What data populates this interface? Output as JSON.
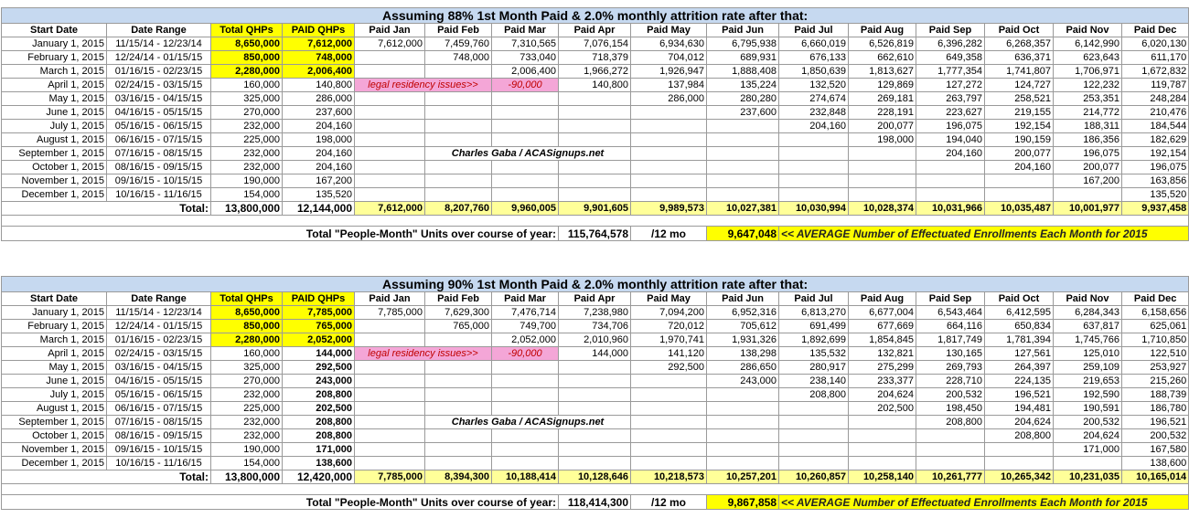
{
  "tables": [
    {
      "title": "Assuming 88% 1st Month Paid & 2.0% monthly attrition rate after that:",
      "headers": [
        "Start Date",
        "Date Range",
        "Total QHPs",
        "PAID QHPs",
        "Paid Jan",
        "Paid Feb",
        "Paid Mar",
        "Paid Apr",
        "Paid May",
        "Paid Jun",
        "Paid Jul",
        "Paid Aug",
        "Paid Sep",
        "Paid Oct",
        "Paid Nov",
        "Paid Dec"
      ],
      "rows": [
        [
          "January 1, 2015",
          "11/15/14 - 12/23/14",
          "8,650,000",
          "7,612,000",
          "7,612,000",
          "7,459,760",
          "7,310,565",
          "7,076,154",
          "6,934,630",
          "6,795,938",
          "6,660,019",
          "6,526,819",
          "6,396,282",
          "6,268,357",
          "6,142,990",
          "6,020,130"
        ],
        [
          "February 1, 2015",
          "12/24/14 - 01/15/15",
          "850,000",
          "748,000",
          null,
          "748,000",
          "733,040",
          "718,379",
          "704,012",
          "689,931",
          "676,133",
          "662,610",
          "649,358",
          "636,371",
          "623,643",
          "611,170"
        ],
        [
          "March 1, 2015",
          "01/16/15 - 02/23/15",
          "2,280,000",
          "2,006,400",
          null,
          null,
          "2,006,400",
          "1,966,272",
          "1,926,947",
          "1,888,408",
          "1,850,639",
          "1,813,627",
          "1,777,354",
          "1,741,807",
          "1,706,971",
          "1,672,832"
        ],
        [
          "April 1, 2015",
          "02/24/15 - 03/15/15",
          "160,000",
          "140,800",
          "legal residency issues>>",
          null,
          "-90,000",
          "140,800",
          "137,984",
          "135,224",
          "132,520",
          "129,869",
          "127,272",
          "124,727",
          "122,232",
          "119,787"
        ],
        [
          "May 1, 2015",
          "03/16/15 - 04/15/15",
          "325,000",
          "286,000",
          null,
          null,
          null,
          null,
          "286,000",
          "280,280",
          "274,674",
          "269,181",
          "263,797",
          "258,521",
          "253,351",
          "248,284"
        ],
        [
          "June 1, 2015",
          "04/16/15 - 05/15/15",
          "270,000",
          "237,600",
          null,
          null,
          null,
          null,
          null,
          "237,600",
          "232,848",
          "228,191",
          "223,627",
          "219,155",
          "214,772",
          "210,476"
        ],
        [
          "July 1, 2015",
          "05/16/15 - 06/15/15",
          "232,000",
          "204,160",
          null,
          null,
          null,
          null,
          null,
          null,
          "204,160",
          "200,077",
          "196,075",
          "192,154",
          "188,311",
          "184,544"
        ],
        [
          "August 1, 2015",
          "06/16/15 - 07/15/15",
          "225,000",
          "198,000",
          null,
          null,
          null,
          null,
          null,
          null,
          null,
          "198,000",
          "194,040",
          "190,159",
          "186,356",
          "182,629"
        ],
        [
          "September 1, 2015",
          "07/16/15 - 08/15/15",
          "232,000",
          "204,160",
          null,
          null,
          null,
          null,
          null,
          null,
          null,
          null,
          "204,160",
          "200,077",
          "196,075",
          "192,154"
        ],
        [
          "October 1, 2015",
          "08/16/15 - 09/15/15",
          "232,000",
          "204,160",
          null,
          null,
          null,
          null,
          null,
          null,
          null,
          null,
          null,
          "204,160",
          "200,077",
          "196,075"
        ],
        [
          "November 1, 2015",
          "09/16/15 - 10/15/15",
          "190,000",
          "167,200",
          null,
          null,
          null,
          null,
          null,
          null,
          null,
          null,
          null,
          null,
          "167,200",
          "163,856"
        ],
        [
          "December 1, 2015",
          "10/16/15 - 11/16/15",
          "154,000",
          "135,520",
          null,
          null,
          null,
          null,
          null,
          null,
          null,
          null,
          null,
          null,
          null,
          "135,520"
        ]
      ],
      "credit": "Charles Gaba / ACASignups.net",
      "total": {
        "label": "Total:",
        "cells": [
          "13,800,000",
          "12,144,000",
          "7,612,000",
          "8,207,760",
          "9,960,005",
          "9,901,605",
          "9,989,573",
          "10,027,381",
          "10,030,994",
          "10,028,374",
          "10,031,966",
          "10,035,487",
          "10,001,977",
          "9,937,458"
        ]
      },
      "summary": {
        "label": "Total \"People-Month\" Units over course of year:",
        "total": "115,764,578",
        "divisor": "/12 mo",
        "average": "9,647,048",
        "note": "<< AVERAGE Number of Effectuated Enrollments Each Month for 2015"
      }
    },
    {
      "title": "Assuming 90% 1st Month Paid & 2.0% monthly attrition rate after that:",
      "headers": [
        "Start Date",
        "Date Range",
        "Total QHPs",
        "PAID QHPs",
        "Paid Jan",
        "Paid Feb",
        "Paid Mar",
        "Paid Apr",
        "Paid May",
        "Paid Jun",
        "Paid Jul",
        "Paid Aug",
        "Paid Sep",
        "Paid Oct",
        "Paid Nov",
        "Paid Dec"
      ],
      "rows": [
        [
          "January 1, 2015",
          "11/15/14 - 12/23/14",
          "8,650,000",
          "7,785,000",
          "7,785,000",
          "7,629,300",
          "7,476,714",
          "7,238,980",
          "7,094,200",
          "6,952,316",
          "6,813,270",
          "6,677,004",
          "6,543,464",
          "6,412,595",
          "6,284,343",
          "6,158,656"
        ],
        [
          "February 1, 2015",
          "12/24/14 - 01/15/15",
          "850,000",
          "765,000",
          null,
          "765,000",
          "749,700",
          "734,706",
          "720,012",
          "705,612",
          "691,499",
          "677,669",
          "664,116",
          "650,834",
          "637,817",
          "625,061"
        ],
        [
          "March 1, 2015",
          "01/16/15 - 02/23/15",
          "2,280,000",
          "2,052,000",
          null,
          null,
          "2,052,000",
          "2,010,960",
          "1,970,741",
          "1,931,326",
          "1,892,699",
          "1,854,845",
          "1,817,749",
          "1,781,394",
          "1,745,766",
          "1,710,850"
        ],
        [
          "April 1, 2015",
          "02/24/15 - 03/15/15",
          "160,000",
          "144,000",
          "legal residency issues>>",
          null,
          "-90,000",
          "144,000",
          "141,120",
          "138,298",
          "135,532",
          "132,821",
          "130,165",
          "127,561",
          "125,010",
          "122,510"
        ],
        [
          "May 1, 2015",
          "03/16/15 - 04/15/15",
          "325,000",
          "292,500",
          null,
          null,
          null,
          null,
          "292,500",
          "286,650",
          "280,917",
          "275,299",
          "269,793",
          "264,397",
          "259,109",
          "253,927"
        ],
        [
          "June 1, 2015",
          "04/16/15 - 05/15/15",
          "270,000",
          "243,000",
          null,
          null,
          null,
          null,
          null,
          "243,000",
          "238,140",
          "233,377",
          "228,710",
          "224,135",
          "219,653",
          "215,260"
        ],
        [
          "July 1, 2015",
          "05/16/15 - 06/15/15",
          "232,000",
          "208,800",
          null,
          null,
          null,
          null,
          null,
          null,
          "208,800",
          "204,624",
          "200,532",
          "196,521",
          "192,590",
          "188,739"
        ],
        [
          "August 1, 2015",
          "06/16/15 - 07/15/15",
          "225,000",
          "202,500",
          null,
          null,
          null,
          null,
          null,
          null,
          null,
          "202,500",
          "198,450",
          "194,481",
          "190,591",
          "186,780"
        ],
        [
          "September 1, 2015",
          "07/16/15 - 08/15/15",
          "232,000",
          "208,800",
          null,
          null,
          null,
          null,
          null,
          null,
          null,
          null,
          "208,800",
          "204,624",
          "200,532",
          "196,521"
        ],
        [
          "October 1, 2015",
          "08/16/15 - 09/15/15",
          "232,000",
          "208,800",
          null,
          null,
          null,
          null,
          null,
          null,
          null,
          null,
          null,
          "208,800",
          "204,624",
          "200,532"
        ],
        [
          "November 1, 2015",
          "09/16/15 - 10/15/15",
          "190,000",
          "171,000",
          null,
          null,
          null,
          null,
          null,
          null,
          null,
          null,
          null,
          null,
          "171,000",
          "167,580"
        ],
        [
          "December 1, 2015",
          "10/16/15 - 11/16/15",
          "154,000",
          "138,600",
          null,
          null,
          null,
          null,
          null,
          null,
          null,
          null,
          null,
          null,
          null,
          "138,600"
        ]
      ],
      "credit": "Charles Gaba / ACASignups.net",
      "total": {
        "label": "Total:",
        "cells": [
          "13,800,000",
          "12,420,000",
          "7,785,000",
          "8,394,300",
          "10,188,414",
          "10,128,646",
          "10,218,573",
          "10,257,201",
          "10,260,857",
          "10,258,140",
          "10,261,777",
          "10,265,342",
          "10,231,035",
          "10,165,014"
        ]
      },
      "summary": {
        "label": "Total \"People-Month\" Units over course of year:",
        "total": "118,414,300",
        "divisor": "/12 mo",
        "average": "9,867,858",
        "note": "<< AVERAGE Number of Effectuated Enrollments Each Month for 2015"
      }
    }
  ]
}
